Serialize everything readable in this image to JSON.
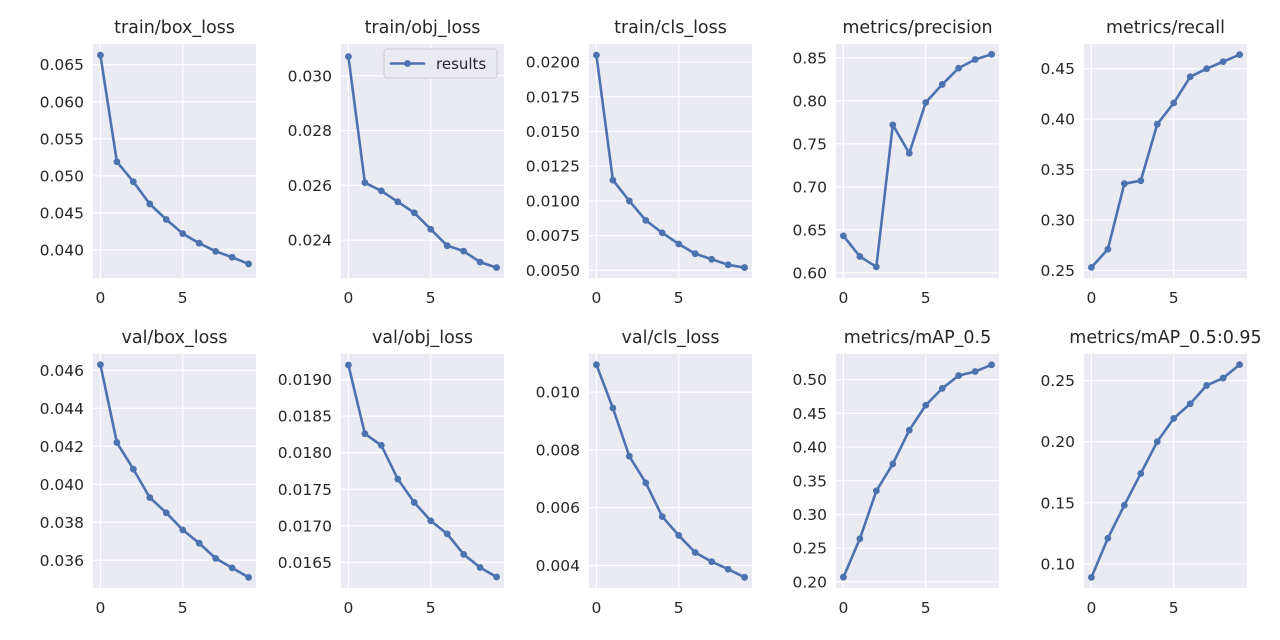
{
  "legend": {
    "label": "results"
  },
  "colors": {
    "line": "#4c72b0",
    "panel": "#eaeaf2",
    "grid": "#ffffff"
  },
  "chart_data": [
    {
      "type": "line",
      "title": "train/box_loss",
      "x": [
        0,
        1,
        2,
        3,
        4,
        5,
        6,
        7,
        8,
        9
      ],
      "values": [
        0.0663,
        0.0519,
        0.0492,
        0.0462,
        0.0441,
        0.0422,
        0.0409,
        0.0398,
        0.039,
        0.0381
      ],
      "ylim": [
        0.0362,
        0.0678
      ],
      "yticks": [
        0.04,
        0.045,
        0.05,
        0.055,
        0.06,
        0.065
      ],
      "ytick_labels": [
        "0.040",
        "0.045",
        "0.050",
        "0.055",
        "0.060",
        "0.065"
      ],
      "xlim": [
        -0.45,
        9.45
      ],
      "xticks": [
        0,
        5
      ],
      "xtick_labels": [
        "0",
        "5"
      ]
    },
    {
      "type": "line",
      "title": "train/obj_loss",
      "x": [
        0,
        1,
        2,
        3,
        4,
        5,
        6,
        7,
        8,
        9
      ],
      "values": [
        0.0307,
        0.0261,
        0.0258,
        0.0254,
        0.025,
        0.0244,
        0.0238,
        0.0236,
        0.0232,
        0.023
      ],
      "ylim": [
        0.02262,
        0.03116
      ],
      "yticks": [
        0.024,
        0.026,
        0.028,
        0.03
      ],
      "ytick_labels": [
        "0.024",
        "0.026",
        "0.028",
        "0.030"
      ],
      "xlim": [
        -0.45,
        9.45
      ],
      "xticks": [
        0,
        5
      ],
      "xtick_labels": [
        "0",
        "5"
      ]
    },
    {
      "type": "line",
      "title": "train/cls_loss",
      "x": [
        0,
        1,
        2,
        3,
        4,
        5,
        6,
        7,
        8,
        9
      ],
      "values": [
        0.0205,
        0.0115,
        0.01,
        0.0086,
        0.0077,
        0.0069,
        0.0062,
        0.0058,
        0.0054,
        0.0052
      ],
      "ylim": [
        0.00445,
        0.0213
      ],
      "yticks": [
        0.005,
        0.0075,
        0.01,
        0.0125,
        0.015,
        0.0175,
        0.02
      ],
      "ytick_labels": [
        "0.0050",
        "0.0075",
        "0.0100",
        "0.0125",
        "0.0150",
        "0.0175",
        "0.0200"
      ],
      "xlim": [
        -0.45,
        9.45
      ],
      "xticks": [
        0,
        5
      ],
      "xtick_labels": [
        "0",
        "5"
      ]
    },
    {
      "type": "line",
      "title": "metrics/precision",
      "x": [
        0,
        1,
        2,
        3,
        4,
        5,
        6,
        7,
        8,
        9
      ],
      "values": [
        0.643,
        0.619,
        0.607,
        0.772,
        0.739,
        0.798,
        0.819,
        0.838,
        0.848,
        0.854
      ],
      "ylim": [
        0.594,
        0.866
      ],
      "yticks": [
        0.6,
        0.65,
        0.7,
        0.75,
        0.8,
        0.85
      ],
      "ytick_labels": [
        "0.60",
        "0.65",
        "0.70",
        "0.75",
        "0.80",
        "0.85"
      ],
      "xlim": [
        -0.45,
        9.45
      ],
      "xticks": [
        0,
        5
      ],
      "xtick_labels": [
        "0",
        "5"
      ]
    },
    {
      "type": "line",
      "title": "metrics/recall",
      "x": [
        0,
        1,
        2,
        3,
        4,
        5,
        6,
        7,
        8,
        9
      ],
      "values": [
        0.253,
        0.271,
        0.336,
        0.339,
        0.395,
        0.416,
        0.442,
        0.45,
        0.457,
        0.464
      ],
      "ylim": [
        0.2425,
        0.4745
      ],
      "yticks": [
        0.25,
        0.3,
        0.35,
        0.4,
        0.45
      ],
      "ytick_labels": [
        "0.25",
        "0.30",
        "0.35",
        "0.40",
        "0.45"
      ],
      "xlim": [
        -0.45,
        9.45
      ],
      "xticks": [
        0,
        5
      ],
      "xtick_labels": [
        "0",
        "5"
      ]
    },
    {
      "type": "line",
      "title": "val/box_loss",
      "x": [
        0,
        1,
        2,
        3,
        4,
        5,
        6,
        7,
        8,
        9
      ],
      "values": [
        0.0463,
        0.0422,
        0.0408,
        0.0393,
        0.0385,
        0.0376,
        0.0369,
        0.0361,
        0.0356,
        0.0351
      ],
      "ylim": [
        0.03454,
        0.04686
      ],
      "yticks": [
        0.036,
        0.038,
        0.04,
        0.042,
        0.044,
        0.046
      ],
      "ytick_labels": [
        "0.036",
        "0.038",
        "0.040",
        "0.042",
        "0.044",
        "0.046"
      ],
      "xlim": [
        -0.45,
        9.45
      ],
      "xticks": [
        0,
        5
      ],
      "xtick_labels": [
        "0",
        "5"
      ]
    },
    {
      "type": "line",
      "title": "val/obj_loss",
      "x": [
        0,
        1,
        2,
        3,
        4,
        5,
        6,
        7,
        8,
        9
      ],
      "values": [
        0.0192,
        0.01826,
        0.0181,
        0.01764,
        0.01732,
        0.01707,
        0.01689,
        0.01661,
        0.01643,
        0.0163
      ],
      "ylim": [
        0.01615,
        0.01935
      ],
      "yticks": [
        0.0165,
        0.017,
        0.0175,
        0.018,
        0.0185,
        0.019
      ],
      "ytick_labels": [
        "0.0165",
        "0.0170",
        "0.0175",
        "0.0180",
        "0.0185",
        "0.0190"
      ],
      "xlim": [
        -0.45,
        9.45
      ],
      "xticks": [
        0,
        5
      ],
      "xtick_labels": [
        "0",
        "5"
      ]
    },
    {
      "type": "line",
      "title": "val/cls_loss",
      "x": [
        0,
        1,
        2,
        3,
        4,
        5,
        6,
        7,
        8,
        9
      ],
      "values": [
        0.01095,
        0.00945,
        0.00778,
        0.00686,
        0.00569,
        0.00504,
        0.00445,
        0.00413,
        0.00387,
        0.00359
      ],
      "ylim": [
        0.00322,
        0.01132
      ],
      "yticks": [
        0.004,
        0.006,
        0.008,
        0.01
      ],
      "ytick_labels": [
        "0.004",
        "0.006",
        "0.008",
        "0.010"
      ],
      "xlim": [
        -0.45,
        9.45
      ],
      "xticks": [
        0,
        5
      ],
      "xtick_labels": [
        "0",
        "5"
      ]
    },
    {
      "type": "line",
      "title": "metrics/mAP_0.5",
      "x": [
        0,
        1,
        2,
        3,
        4,
        5,
        6,
        7,
        8,
        9
      ],
      "values": [
        0.207,
        0.264,
        0.335,
        0.375,
        0.425,
        0.462,
        0.487,
        0.506,
        0.512,
        0.522
      ],
      "ylim": [
        0.191,
        0.538
      ],
      "yticks": [
        0.2,
        0.25,
        0.3,
        0.35,
        0.4,
        0.45,
        0.5
      ],
      "ytick_labels": [
        "0.20",
        "0.25",
        "0.30",
        "0.35",
        "0.40",
        "0.45",
        "0.50"
      ],
      "xlim": [
        -0.45,
        9.45
      ],
      "xticks": [
        0,
        5
      ],
      "xtick_labels": [
        "0",
        "5"
      ]
    },
    {
      "type": "line",
      "title": "metrics/mAP_0.5:0.95",
      "x": [
        0,
        1,
        2,
        3,
        4,
        5,
        6,
        7,
        8,
        9
      ],
      "values": [
        0.089,
        0.121,
        0.148,
        0.174,
        0.2,
        0.219,
        0.231,
        0.246,
        0.252,
        0.263
      ],
      "ylim": [
        0.0803,
        0.2717
      ],
      "yticks": [
        0.1,
        0.15,
        0.2,
        0.25
      ],
      "ytick_labels": [
        "0.10",
        "0.15",
        "0.20",
        "0.25"
      ],
      "xlim": [
        -0.45,
        9.45
      ],
      "xticks": [
        0,
        5
      ],
      "xtick_labels": [
        "0",
        "5"
      ]
    }
  ]
}
